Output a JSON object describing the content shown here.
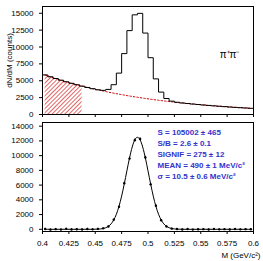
{
  "chart_data": [
    {
      "type": "histogram",
      "ylabel": "dN/dM (counts)",
      "annotation": "π⁺π⁻",
      "bins": [
        0.4,
        0.405,
        0.41,
        0.415,
        0.42,
        0.425,
        0.43,
        0.435,
        0.44,
        0.445,
        0.45,
        0.455,
        0.46,
        0.465,
        0.47,
        0.475,
        0.48,
        0.485,
        0.49,
        0.495,
        0.5,
        0.505,
        0.51,
        0.515,
        0.52,
        0.525,
        0.53,
        0.535,
        0.54,
        0.545,
        0.55,
        0.555,
        0.56,
        0.565,
        0.57,
        0.575,
        0.58,
        0.585,
        0.59,
        0.595,
        0.6
      ],
      "counts": [
        5859,
        5587,
        5328,
        5082,
        4845,
        4620,
        4406,
        4201,
        4006,
        3823,
        3664,
        3578,
        3718,
        4414,
        6129,
        9023,
        12427,
        14763,
        14984,
        12063,
        8416,
        5277,
        3316,
        2369,
        1978,
        1808,
        1707,
        1625,
        1550,
        1478,
        1409,
        1344,
        1282,
        1222,
        1165,
        1111,
        1060,
        1011,
        964,
        919
      ],
      "color": "#000000",
      "background": {
        "color": "#cc0000",
        "line_style": "dotted",
        "values": [
          5859,
          5587,
          5328,
          5082,
          4845,
          4620,
          4406,
          4201,
          4006,
          3820,
          3643,
          3474,
          3313,
          3159,
          3013,
          2873,
          2740,
          2613,
          2492,
          2376,
          2266,
          2161,
          2061,
          1965,
          1874,
          1787,
          1704,
          1625,
          1550,
          1478,
          1409,
          1344,
          1282,
          1222,
          1165,
          1111,
          1060,
          1011,
          964,
          919
        ]
      },
      "sideband": [
        0.4,
        0.44
      ],
      "xlim": [
        0.4,
        0.6
      ],
      "xticks": [
        0.4,
        0.425,
        0.45,
        0.475,
        0.5,
        0.525,
        0.55,
        0.575,
        0.6
      ],
      "ylim": [
        0,
        16000
      ],
      "yticks": [
        0,
        2500,
        5000,
        7500,
        10000,
        12500,
        15000
      ],
      "tick_labels": "y"
    },
    {
      "type": "scatter",
      "xlabel": "M (GeV/c²)",
      "annotations": [
        "S = 105002 ± 465",
        "S/B = 2.6 ± 0.1",
        "SIGNIF = 275 ± 12",
        "MEAN = 490 ± 1 MeV/c²",
        "σ = 10.5 ± 0.6 MeV/c²"
      ],
      "annotation_color": "#3333cc",
      "x": [
        0.4025,
        0.4075,
        0.4125,
        0.4175,
        0.4225,
        0.4275,
        0.4325,
        0.4375,
        0.4425,
        0.4475,
        0.4525,
        0.4575,
        0.4625,
        0.4675,
        0.4725,
        0.4775,
        0.4825,
        0.4875,
        0.4925,
        0.4975,
        0.5025,
        0.5075,
        0.5125,
        0.5175,
        0.5225,
        0.5275,
        0.5325,
        0.5375,
        0.5425,
        0.5475,
        0.5525,
        0.5575,
        0.5625,
        0.5675,
        0.5725,
        0.5775,
        0.5825,
        0.5875,
        0.5925,
        0.5975
      ],
      "values": [
        30,
        -50,
        20,
        -40,
        60,
        -20,
        10,
        -30,
        40,
        -10,
        50,
        130,
        380,
        1300,
        3050,
        6250,
        9600,
        12100,
        12250,
        9750,
        6100,
        3200,
        1230,
        380,
        90,
        40,
        -20,
        30,
        -40,
        10,
        20,
        -30,
        40,
        -10,
        20,
        -20,
        30,
        -10,
        20,
        0
      ],
      "errors": [
        110,
        108,
        105,
        103,
        100,
        98,
        96,
        94,
        92,
        90,
        90,
        90,
        92,
        100,
        120,
        145,
        170,
        185,
        185,
        165,
        140,
        110,
        90,
        75,
        68,
        65,
        62,
        60,
        58,
        58,
        57,
        56,
        55,
        54,
        53,
        52,
        51,
        50,
        50,
        49
      ],
      "color": "#000000",
      "fit": {
        "color": "#000000",
        "values": [
          0,
          0,
          0,
          0,
          0,
          0,
          0,
          0,
          0,
          3,
          21,
          104,
          405,
          1255,
          3116,
          6150,
          9687,
          12150,
          12150,
          9687,
          6150,
          3116,
          1255,
          405,
          104,
          21,
          3,
          0,
          0,
          0,
          0,
          0,
          0,
          0,
          0,
          0,
          0,
          0,
          0,
          0
        ]
      },
      "xlim": [
        0.4,
        0.6
      ],
      "xticks": [
        0.4,
        0.425,
        0.45,
        0.475,
        0.5,
        0.525,
        0.55,
        0.575,
        0.6
      ],
      "ylim": [
        -300,
        14500
      ],
      "yticks": [
        0,
        2000,
        4000,
        6000,
        8000,
        10000,
        12000,
        14000
      ]
    }
  ]
}
